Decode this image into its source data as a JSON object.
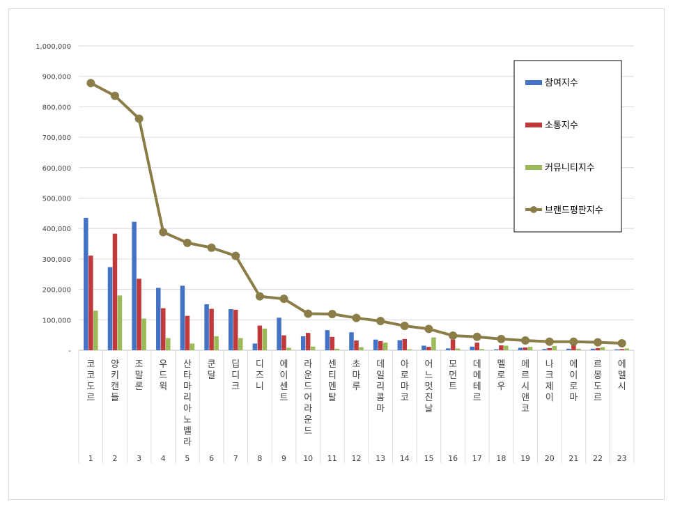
{
  "chart_data": {
    "type": "bar",
    "title": "",
    "xlabel": "",
    "ylabel": "",
    "ylim": [
      0,
      1000000
    ],
    "yticks": [
      "-",
      "100,000",
      "200,000",
      "300,000",
      "400,000",
      "500,000",
      "600,000",
      "700,000",
      "800,000",
      "900,000",
      "1,000,000"
    ],
    "ranks": [
      "1",
      "2",
      "3",
      "4",
      "5",
      "6",
      "7",
      "8",
      "9",
      "10",
      "11",
      "12",
      "13",
      "14",
      "15",
      "16",
      "17",
      "18",
      "19",
      "20",
      "21",
      "22",
      "23"
    ],
    "categories": [
      "코코도르",
      "양키캔들",
      "조말론",
      "우드윅",
      "산타마리아노벨라",
      "쿤달",
      "딥디크",
      "디즈니",
      "에이센트",
      "라운드어라운드",
      "센티멘탈",
      "초마루",
      "데일리콤마",
      "아로마코",
      "어느멋진날",
      "모먼트",
      "데메테르",
      "멜로우",
      "메르시앤코",
      "나크제이",
      "에이로마",
      "르몽도르",
      "에멜시"
    ],
    "series": [
      {
        "name": "참여지수",
        "type": "bar",
        "color": "#4472c4",
        "values": [
          435000,
          273000,
          422000,
          205000,
          212000,
          151000,
          135000,
          22000,
          107000,
          46000,
          66000,
          59000,
          35000,
          33000,
          15000,
          6000,
          12000,
          3000,
          8000,
          4000,
          5000,
          5000,
          3000
        ]
      },
      {
        "name": "소통지수",
        "type": "bar",
        "color": "#c0393b",
        "values": [
          311000,
          383000,
          235000,
          138000,
          113000,
          136000,
          133000,
          81000,
          49000,
          57000,
          44000,
          32000,
          30000,
          37000,
          11000,
          35000,
          25000,
          16000,
          9000,
          7000,
          17000,
          7000,
          4000
        ]
      },
      {
        "name": "커뮤니티지수",
        "type": "bar",
        "color": "#9bbb59",
        "values": [
          130000,
          180000,
          104000,
          40000,
          22000,
          46000,
          40000,
          71000,
          8000,
          12000,
          5000,
          10000,
          25000,
          3000,
          42000,
          6000,
          4000,
          15000,
          11000,
          14000,
          5000,
          10000,
          6000
        ]
      },
      {
        "name": "브랜드평판지수",
        "type": "line",
        "color": "#8b7d48",
        "values": [
          878000,
          836000,
          761000,
          388000,
          353000,
          337000,
          310000,
          177000,
          169000,
          120000,
          119000,
          106000,
          96000,
          80000,
          70000,
          48000,
          44000,
          37000,
          32000,
          28000,
          28000,
          26000,
          23000
        ]
      }
    ],
    "legend_position": "right",
    "grid": true
  }
}
